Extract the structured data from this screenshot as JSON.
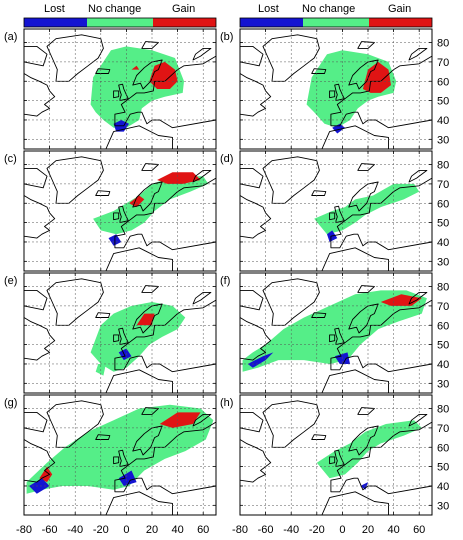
{
  "legend": {
    "labels": [
      "Lost",
      "No change",
      "Gain"
    ],
    "colors": [
      "#1414d2",
      "#55ee88",
      "#e01414"
    ]
  },
  "axes": {
    "x_ticks": [
      "-80",
      "-60",
      "-40",
      "-20",
      "0",
      "20",
      "40",
      "60"
    ],
    "y_ticks": [
      "30",
      "40",
      "50",
      "60",
      "70",
      "80"
    ]
  },
  "panels": [
    "(a)",
    "(b)",
    "(c)",
    "(d)",
    "(e)",
    "(f)",
    "(g)",
    "(h)"
  ],
  "colors": {
    "coast": "#000000",
    "grid": "#555555"
  }
}
